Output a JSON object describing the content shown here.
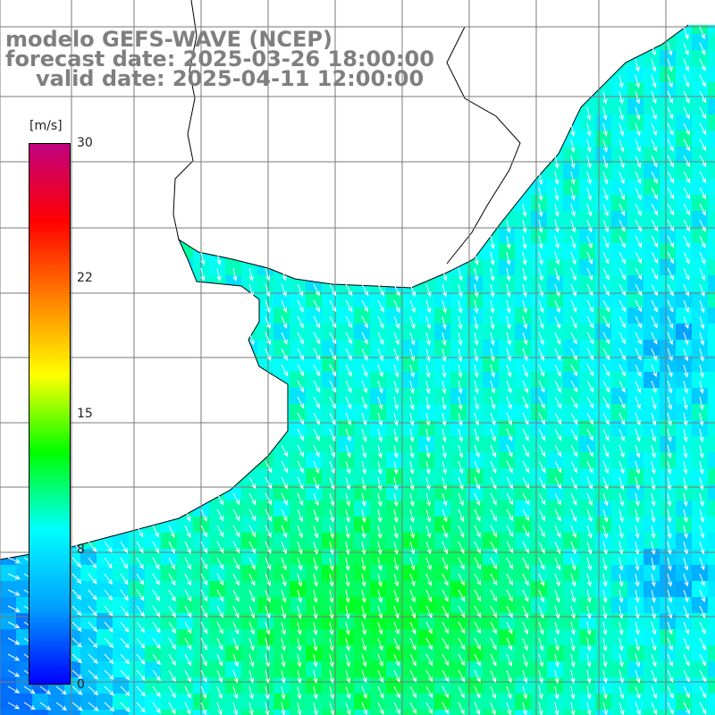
{
  "title": {
    "model": "modelo GEFS-WAVE (NCEP)",
    "forecast": "forecast date: 2025-03-26 18:00:00",
    "valid": "valid date: 2025-04-11 12:00:00"
  },
  "colorbar": {
    "unit": "[m/s]",
    "ticks": [
      "30",
      "22",
      "15",
      "8",
      "0"
    ],
    "tick_values": [
      30,
      22,
      15,
      8,
      0
    ],
    "range": [
      0,
      30
    ],
    "colors": [
      "#0000ff",
      "#00a0ff",
      "#00ffff",
      "#00ff00",
      "#ffff00",
      "#ff8000",
      "#ff0000",
      "#c00080"
    ]
  },
  "map": {
    "ocean_color": "#00ffa0",
    "land_color": "#ffffff",
    "grid_color": "#808080",
    "arrow_color": "#ffffff",
    "coast_color": "#000000",
    "field": "wind speed and direction"
  }
}
